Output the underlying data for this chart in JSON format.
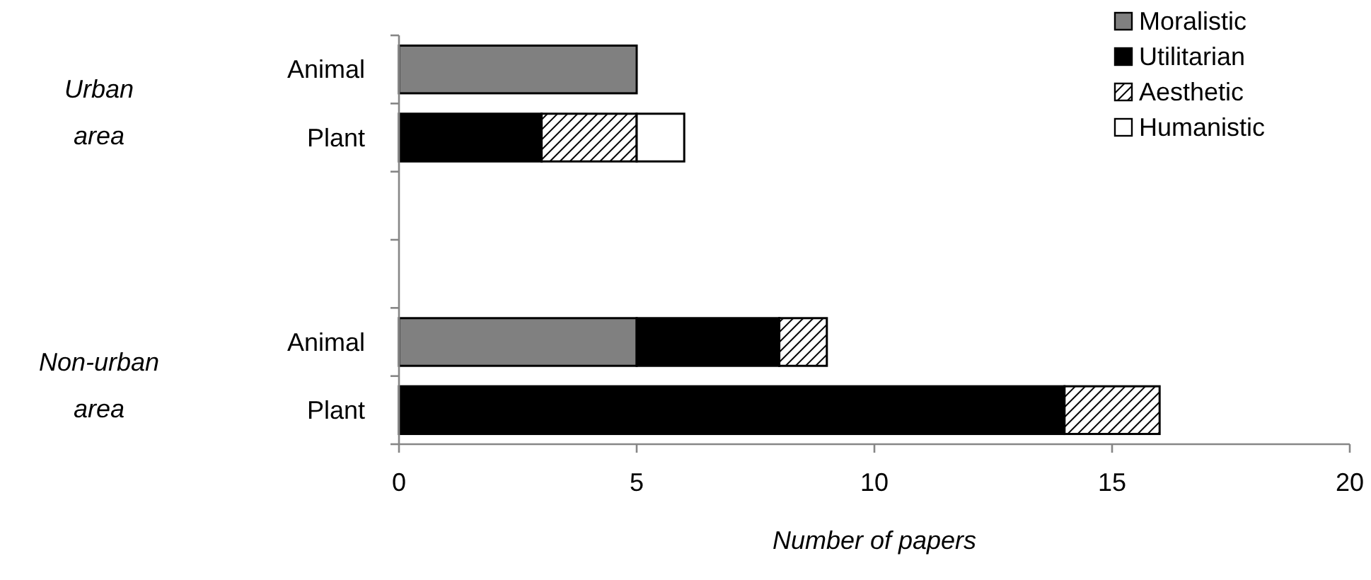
{
  "chart_data": {
    "type": "bar",
    "orientation": "horizontal",
    "stacked": true,
    "categories": [
      "Animal",
      "Plant",
      null,
      null,
      "Animal",
      "Plant"
    ],
    "series": [
      {
        "name": "Moralistic",
        "color": "#808080",
        "values": [
          5,
          null,
          null,
          null,
          5,
          null
        ]
      },
      {
        "name": "Utilitarian",
        "color": "#000000",
        "values": [
          null,
          3,
          null,
          null,
          3,
          14
        ]
      },
      {
        "name": "Aesthetic",
        "color": "#000000",
        "values": [
          null,
          2,
          null,
          null,
          1,
          2
        ]
      },
      {
        "name": "Humanistic",
        "color": "#ffffff",
        "values": [
          null,
          1,
          null,
          null,
          null,
          null
        ]
      }
    ],
    "xlim": [
      0,
      20
    ],
    "xticks": [
      0,
      5,
      10,
      15,
      20
    ],
    "xlabel": "Number of papers",
    "legend": "top right",
    "grid": false,
    "annotations": [
      "Urban area",
      "Non-urban area"
    ]
  }
}
